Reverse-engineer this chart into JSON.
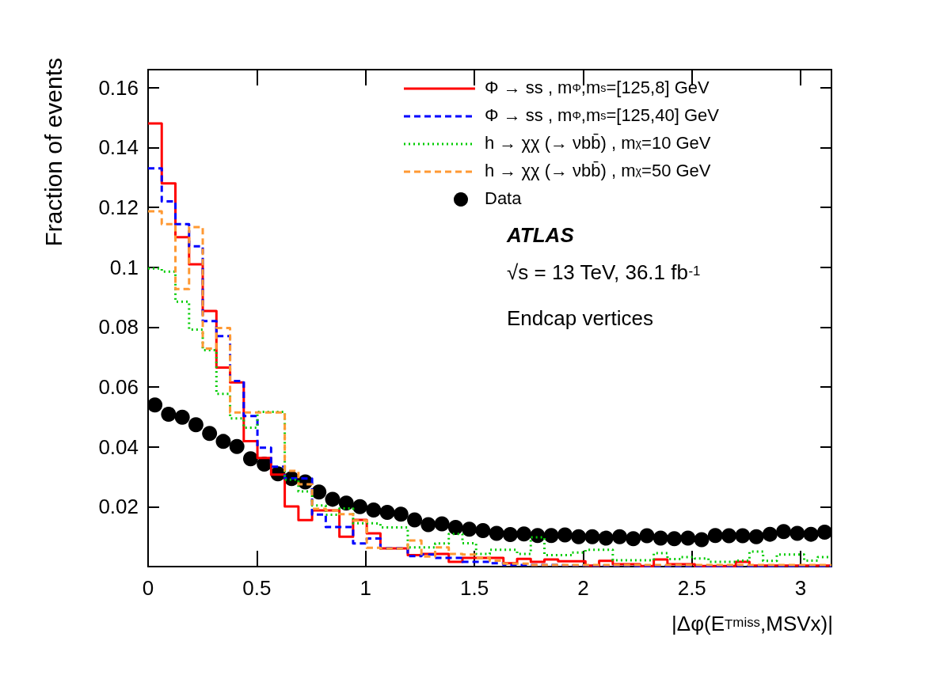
{
  "chart_data": {
    "type": "histogram",
    "xlabel": "|Δφ(E$_{T}$$^{miss}$,MSVx)|",
    "ylabel": "Fraction of events",
    "annotations": [
      "ATLAS",
      "√s = 13 TeV, 36.1 fb$^{-1}$",
      "Endcap vertices"
    ],
    "bins": [
      0,
      0.0628,
      0.1257,
      0.1885,
      0.2513,
      0.3142,
      0.377,
      0.4398,
      0.5027,
      0.5655,
      0.6283,
      0.6912,
      0.754,
      0.8168,
      0.8796,
      0.9425,
      1.0053,
      1.0681,
      1.131,
      1.1938,
      1.2566,
      1.3195,
      1.3823,
      1.4451,
      1.508,
      1.5708,
      1.6336,
      1.6965,
      1.7593,
      1.8221,
      1.885,
      1.9478,
      2.0106,
      2.0735,
      2.1363,
      2.1991,
      2.2619,
      2.3248,
      2.3876,
      2.4504,
      2.5133,
      2.5761,
      2.6389,
      2.7018,
      2.7646,
      2.8274,
      2.8903,
      2.9531,
      3.0159,
      3.0788,
      3.1416
    ],
    "series": [
      {
        "name": "Φ → ss , m$_{Φ}$,m$_{s}$=[125,8] GeV",
        "color": "#ff0000",
        "line_style": "solid",
        "values": [
          0.148,
          0.128,
          0.11,
          0.101,
          0.0854,
          0.0665,
          0.0615,
          0.0419,
          0.0363,
          0.0307,
          0.0201,
          0.0155,
          0.0188,
          0.0188,
          0.01,
          0.0156,
          0.0111,
          0.0061,
          0.0061,
          0.0038,
          0.0042,
          0.0042,
          0.0016,
          0.0029,
          0.0029,
          0.0029,
          0.0011,
          0.0026,
          0.0016,
          0.0024,
          0.0018,
          0.0018,
          0.0003,
          0.0019,
          0.0008,
          0.0008,
          0.0002,
          0.0024,
          0.0008,
          0.0008,
          0.0002,
          0.0002,
          0.0002,
          0.0016,
          0.0003,
          0.0003,
          0.0003,
          0.0003,
          0.0003,
          0.0003
        ]
      },
      {
        "name": "Φ → ss , m$_{Φ}$,m$_{s}$=[125,40] GeV",
        "color": "#0000ff",
        "line_style": "dashed",
        "values": [
          0.133,
          0.122,
          0.1144,
          0.107,
          0.082,
          0.077,
          0.062,
          0.0503,
          0.0397,
          0.0334,
          0.0295,
          0.0294,
          0.0174,
          0.0132,
          0.0132,
          0.0077,
          0.0094,
          0.0061,
          0.0061,
          0.0035,
          0.004,
          0.0029,
          0.0029,
          0.0016,
          0.0016,
          0.0011,
          0.0005,
          0.0005,
          0.0005,
          0.0005,
          0.0004,
          0.0004,
          0.0003,
          0.0003,
          0.0003,
          0.0002,
          0.0002,
          0.0002,
          0.0002,
          0.0002,
          0.0002,
          0.0002,
          0.0002,
          0.0002,
          0.0002,
          0.0002,
          0.0002,
          0.0002,
          0.0002,
          0.0002
        ]
      },
      {
        "name": "h → χχ (→ νbb̄) , m$_{χ}$=10 GeV",
        "color": "#00cc00",
        "line_style": "dotted",
        "values": [
          0.0996,
          0.0985,
          0.0885,
          0.0792,
          0.0723,
          0.0577,
          0.0495,
          0.0464,
          0.0517,
          0.0517,
          0.029,
          0.0251,
          0.0204,
          0.0173,
          0.0194,
          0.0145,
          0.0144,
          0.0131,
          0.0131,
          0.0064,
          0.0064,
          0.0077,
          0.0109,
          0.0078,
          0.0042,
          0.0056,
          0.0056,
          0.0042,
          0.0098,
          0.0038,
          0.0038,
          0.0047,
          0.0056,
          0.0056,
          0.0021,
          0.0021,
          0.0021,
          0.0045,
          0.0025,
          0.0032,
          0.0027,
          0.0016,
          0.0016,
          0.002,
          0.005,
          0.0019,
          0.004,
          0.004,
          0.002,
          0.0032
        ]
      },
      {
        "name": "h → χχ (→ νbb̄) , m$_{χ}$=50 GeV",
        "color": "#ff9933",
        "line_style": "dashed",
        "values": [
          0.1187,
          0.1144,
          0.0927,
          0.1134,
          0.0728,
          0.0797,
          0.0515,
          0.0515,
          0.0515,
          0.0515,
          0.032,
          0.0275,
          0.0193,
          0.0188,
          0.0175,
          0.0154,
          0.0063,
          0.006,
          0.006,
          0.0087,
          0.0034,
          0.0064,
          0.0042,
          0.004,
          0.0029,
          0.002,
          0.001,
          0.001,
          0.0005,
          0.0005,
          0.0005,
          0.0005,
          0.0005,
          0.0005,
          0.0005,
          0.0005,
          0.0005,
          0.0005,
          0.0005,
          0.0005,
          0.0005,
          0.0005,
          0.0005,
          0.0005,
          0.0005,
          0.0005,
          0.0005,
          0.0005,
          0.0005,
          0.0005
        ]
      },
      {
        "name": "Data",
        "type": "scatter",
        "color": "#000000",
        "marker": "circle",
        "x": [
          0.0314,
          0.0942,
          0.1571,
          0.2199,
          0.2827,
          0.3456,
          0.4084,
          0.4712,
          0.5341,
          0.5969,
          0.6597,
          0.7226,
          0.7854,
          0.8482,
          0.9111,
          0.9739,
          1.0367,
          1.0996,
          1.1624,
          1.2252,
          1.2881,
          1.3509,
          1.4137,
          1.4765,
          1.5394,
          1.6022,
          1.665,
          1.7279,
          1.7907,
          1.8535,
          1.9164,
          1.9792,
          2.042,
          2.1049,
          2.1677,
          2.2305,
          2.2934,
          2.3562,
          2.419,
          2.4819,
          2.5447,
          2.6075,
          2.6704,
          2.7332,
          2.796,
          2.8588,
          2.9217,
          2.9845,
          3.0473,
          3.1102
        ],
        "values": [
          0.054,
          0.0509,
          0.0499,
          0.0474,
          0.0445,
          0.0418,
          0.0401,
          0.036,
          0.0342,
          0.031,
          0.0294,
          0.0283,
          0.0249,
          0.0225,
          0.0212,
          0.02,
          0.0189,
          0.0181,
          0.0175,
          0.0156,
          0.014,
          0.0143,
          0.0131,
          0.0125,
          0.012,
          0.0111,
          0.0107,
          0.0109,
          0.0104,
          0.0104,
          0.0106,
          0.01,
          0.01,
          0.0095,
          0.01,
          0.0093,
          0.0103,
          0.0095,
          0.0093,
          0.0095,
          0.009,
          0.0104,
          0.0103,
          0.0103,
          0.01,
          0.0108,
          0.0117,
          0.0111,
          0.0108,
          0.0115
        ]
      }
    ],
    "xlim": [
      0,
      3.1416
    ],
    "xticks": [
      0,
      0.5,
      1,
      1.5,
      2,
      2.5,
      3
    ],
    "ylim": [
      0,
      0.166
    ],
    "yticks": [
      {
        "value": 0,
        "label": null
      },
      0.02,
      0.04,
      0.06,
      0.08,
      0.1,
      0.12,
      0.14,
      0.16
    ],
    "grid": false,
    "legend": "top right"
  }
}
